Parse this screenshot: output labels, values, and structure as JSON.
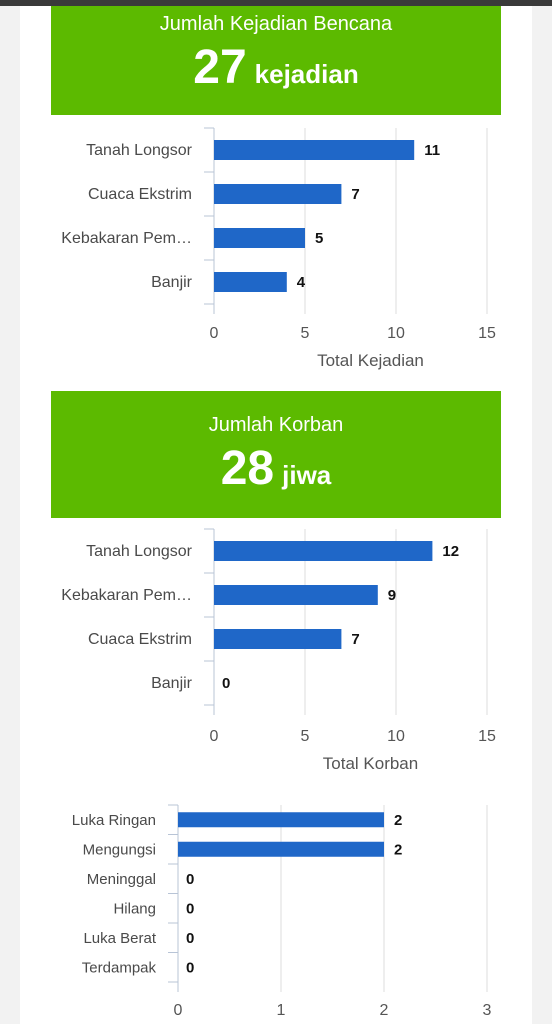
{
  "colors": {
    "banner": "#5cba00",
    "bar": "#1f67c8",
    "grid": "#dcdcdc",
    "axis": "#b8c4d6"
  },
  "summary_kejadian": {
    "label": "Jumlah Kejadian Bencana",
    "value": "27",
    "unit": "kejadian"
  },
  "summary_korban": {
    "label": "Jumlah Korban",
    "value": "28",
    "unit": "jiwa"
  },
  "chart_data": [
    {
      "type": "bar",
      "orientation": "horizontal",
      "categories": [
        "Tanah Longsor",
        "Cuaca Ekstrim",
        "Kebakaran Pem…",
        "Banjir"
      ],
      "values": [
        11,
        7,
        5,
        4
      ],
      "xlabel": "Total Kejadian",
      "xticks": [
        0,
        5,
        10,
        15
      ],
      "xlim": [
        0,
        15
      ],
      "grid": true
    },
    {
      "type": "bar",
      "orientation": "horizontal",
      "categories": [
        "Tanah Longsor",
        "Kebakaran Pem…",
        "Cuaca Ekstrim",
        "Banjir"
      ],
      "values": [
        12,
        9,
        7,
        0
      ],
      "xlabel": "Total Korban",
      "xticks": [
        0,
        5,
        10,
        15
      ],
      "xlim": [
        0,
        15
      ],
      "grid": true
    },
    {
      "type": "bar",
      "orientation": "horizontal",
      "categories": [
        "Luka Ringan",
        "Mengungsi",
        "Meninggal",
        "Hilang",
        "Luka Berat",
        "Terdampak"
      ],
      "values": [
        2,
        2,
        0,
        0,
        0,
        0
      ],
      "xlabel": "",
      "xticks": [
        0,
        1,
        2,
        3
      ],
      "xlim": [
        0,
        3
      ],
      "grid": true
    }
  ]
}
